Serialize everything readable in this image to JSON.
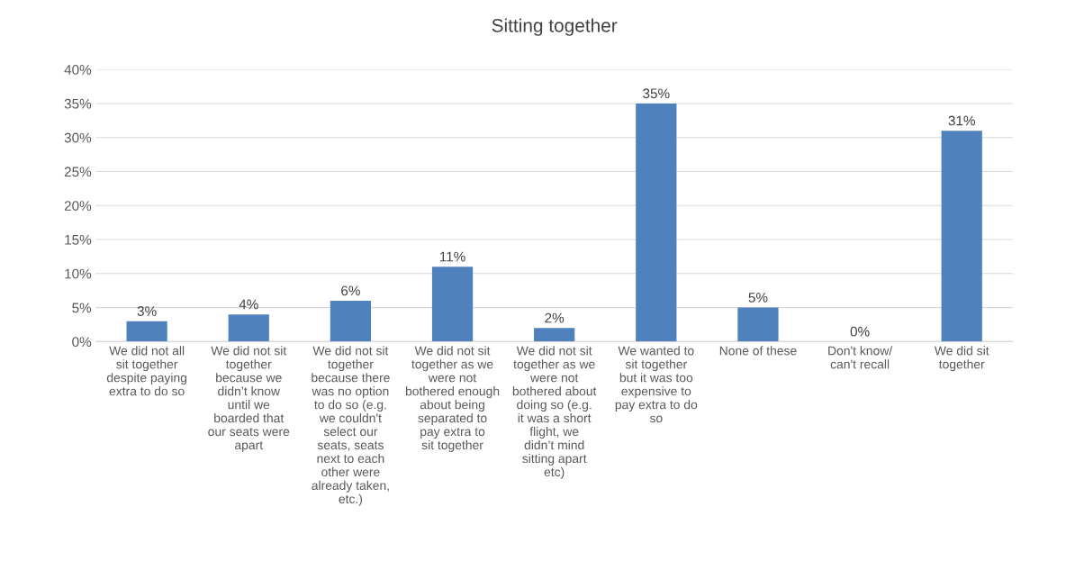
{
  "chart_data": {
    "type": "bar",
    "title": "Sitting together",
    "categories": [
      "We did not all sit together despite paying extra to do so",
      "We did not sit together because we didn’t know until we boarded that our seats were apart",
      "We did not sit together because there was no option to do so (e.g. we couldn't select our seats, seats next to each other were already taken, etc.)",
      "We did not sit together as we were not bothered enough about being separated to pay extra to sit together",
      "We did not sit together as we were not bothered about doing so (e.g. it was a short flight, we didn’t mind sitting apart etc)",
      "We wanted to sit together but it was too expensive to pay extra to do so",
      "None of these",
      "Don't know/ can't recall",
      "We did sit together"
    ],
    "values": [
      3,
      4,
      6,
      11,
      2,
      35,
      5,
      0,
      31
    ],
    "value_labels": [
      "3%",
      "4%",
      "6%",
      "11%",
      "2%",
      "35%",
      "5%",
      "0%",
      "31%"
    ],
    "color": "#4f81bd",
    "ylim": [
      0,
      40
    ],
    "yticks": [
      {
        "value": 0,
        "label": "0%"
      },
      {
        "value": 5,
        "label": "5%"
      },
      {
        "value": 10,
        "label": "10%"
      },
      {
        "value": 15,
        "label": "15%"
      },
      {
        "value": 20,
        "label": "20%"
      },
      {
        "value": 25,
        "label": "25%"
      },
      {
        "value": 30,
        "label": "30%"
      },
      {
        "value": 35,
        "label": "35%"
      },
      {
        "value": 40,
        "label": "40%"
      }
    ],
    "grid": "y"
  }
}
